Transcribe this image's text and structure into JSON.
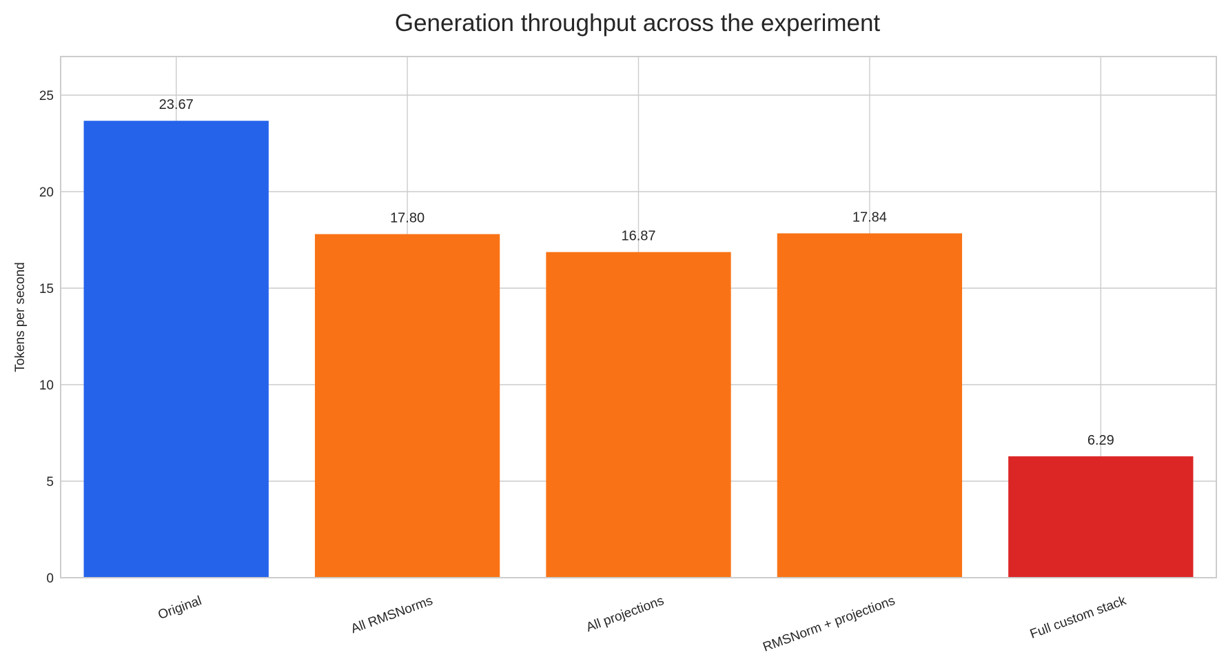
{
  "chart_data": {
    "type": "bar",
    "title": "Generation throughput across the experiment",
    "xlabel": "",
    "ylabel": "Tokens per second",
    "categories": [
      "Original",
      "All RMSNorms",
      "All projections",
      "RMSNorm + projections",
      "Full custom stack"
    ],
    "values": [
      23.67,
      17.8,
      16.87,
      17.84,
      6.29
    ],
    "data_labels": [
      "23.67",
      "17.80",
      "16.87",
      "17.84",
      "6.29"
    ],
    "colors": [
      "#2563eb",
      "#f97316",
      "#f97316",
      "#f97316",
      "#dc2626"
    ],
    "ylim": [
      0,
      27
    ],
    "yticks": [
      0,
      5,
      10,
      15,
      20,
      25
    ],
    "grid": true,
    "legend": "none",
    "xtick_rotation_deg": -20
  }
}
